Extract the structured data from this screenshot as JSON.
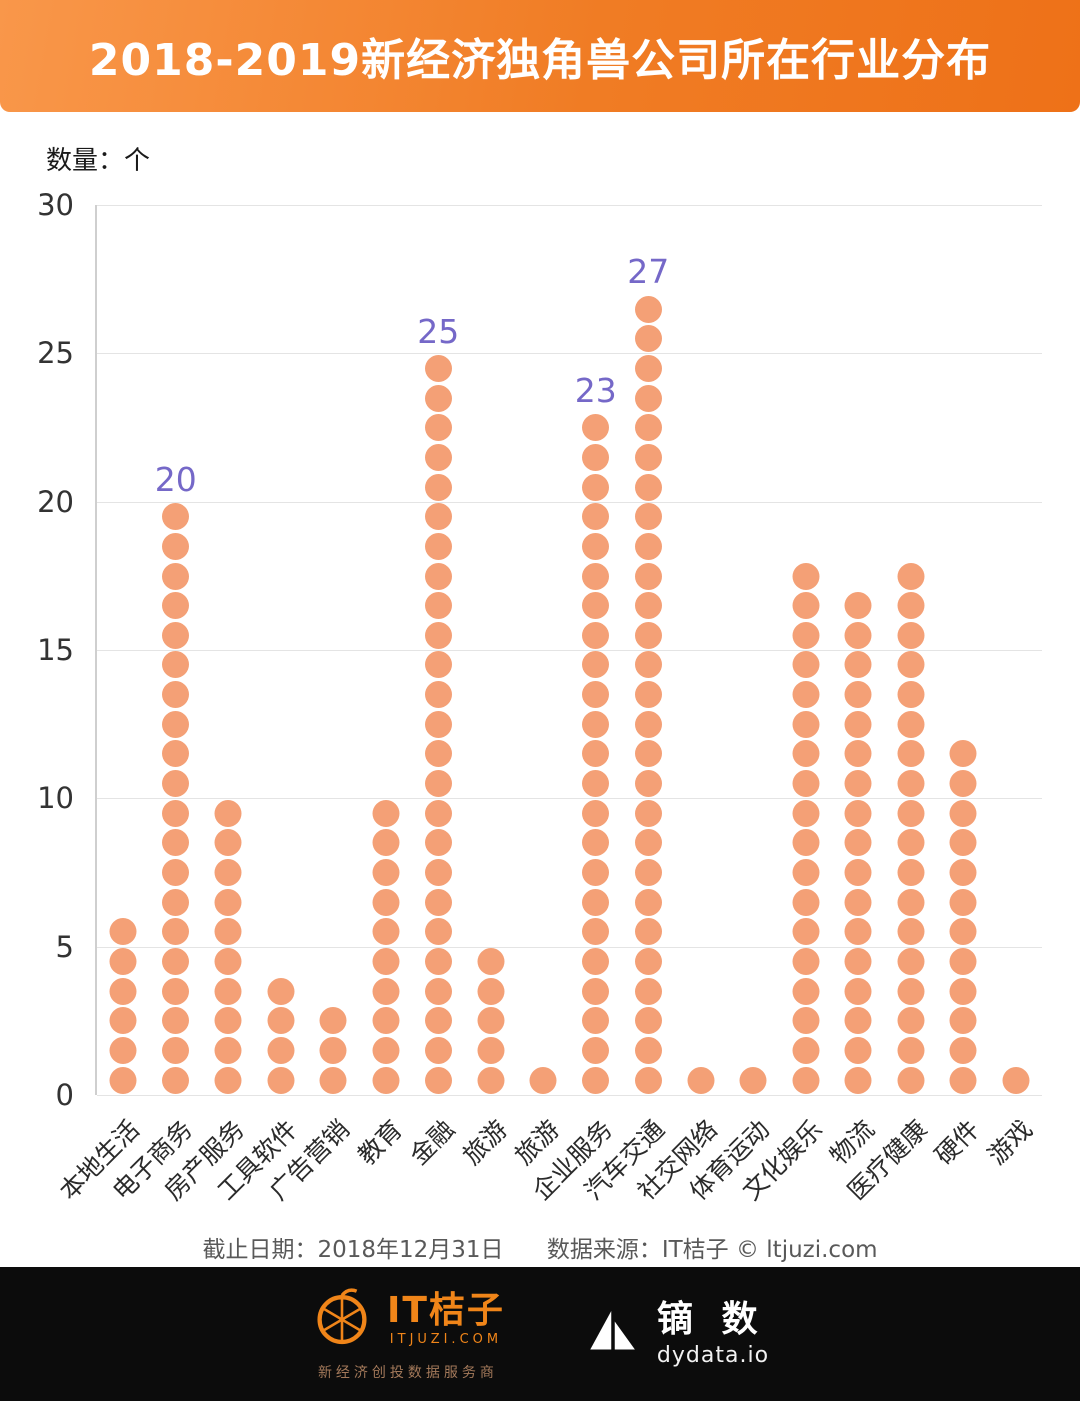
{
  "header": {
    "title": "2018-2019新经济独角兽公司所在行业分布"
  },
  "chart_data": {
    "type": "bar",
    "style": "stacked-dot-column",
    "unit_label": "数量：个",
    "categories": [
      "本地生活",
      "电子商务",
      "房产服务",
      "工具软件",
      "广告营销",
      "教育",
      "金融",
      "旅游",
      "旅游",
      "企业服务",
      "汽车交通",
      "社交网络",
      "体育运动",
      "文化娱乐",
      "物流",
      "医疗健康",
      "硬件",
      "游戏"
    ],
    "values": [
      6,
      20,
      10,
      4,
      3,
      10,
      25,
      5,
      1,
      23,
      27,
      1,
      1,
      18,
      17,
      18,
      12,
      1
    ],
    "value_labels": {
      "1": "20",
      "6": "25",
      "9": "23",
      "10": "27"
    },
    "ylim": [
      0,
      30
    ],
    "yticks": [
      0,
      5,
      10,
      15,
      20,
      25,
      30
    ],
    "grid": true,
    "legend": "none",
    "dot_color": "#f4a076",
    "value_label_color": "#7568c8"
  },
  "footnote": {
    "date": "截止日期：2018年12月31日",
    "source": "数据来源：IT桔子 © ltjuzi.com"
  },
  "footer": {
    "itjuzi_name": "IT桔子",
    "itjuzi_domain": "ITJUZI.COM",
    "itjuzi_tagline": "新经济创投数据服务商",
    "dydata_name": "镝 数",
    "dydata_domain": "dydata.io"
  }
}
